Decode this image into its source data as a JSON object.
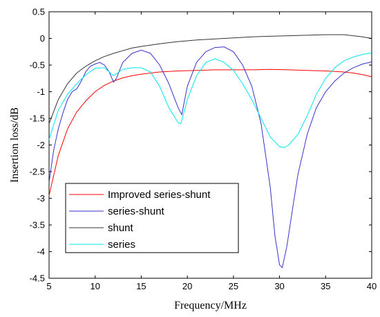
{
  "chart_data": {
    "type": "line",
    "xlabel": "Frequency/MHz",
    "ylabel": "Insertion loss/dB",
    "xlim": [
      5,
      40
    ],
    "ylim": [
      -4.5,
      0.5
    ],
    "xticks": [
      5,
      10,
      15,
      20,
      25,
      30,
      35,
      40
    ],
    "yticks": [
      0.5,
      0,
      -0.5,
      -1,
      -1.5,
      -2,
      -2.5,
      -3,
      -3.5,
      -4,
      -4.5
    ],
    "grid": false,
    "legend_position": "lower-left",
    "series": [
      {
        "name": "Improved series-shunt",
        "color": "#ff0000",
        "points": [
          [
            5,
            -2.95
          ],
          [
            6,
            -2.2
          ],
          [
            7,
            -1.7
          ],
          [
            8,
            -1.38
          ],
          [
            9,
            -1.17
          ],
          [
            10,
            -1.0
          ],
          [
            11,
            -0.88
          ],
          [
            12,
            -0.8
          ],
          [
            13,
            -0.74
          ],
          [
            14,
            -0.7
          ],
          [
            15,
            -0.67
          ],
          [
            17,
            -0.63
          ],
          [
            19,
            -0.61
          ],
          [
            21,
            -0.6
          ],
          [
            23,
            -0.59
          ],
          [
            25,
            -0.59
          ],
          [
            27,
            -0.59
          ],
          [
            29,
            -0.58
          ],
          [
            31,
            -0.59
          ],
          [
            33,
            -0.6
          ],
          [
            35,
            -0.61
          ],
          [
            37,
            -0.63
          ],
          [
            38,
            -0.65
          ],
          [
            39,
            -0.68
          ],
          [
            40,
            -0.72
          ]
        ]
      },
      {
        "name": "series-shunt",
        "color": "#3333cc",
        "points": [
          [
            5,
            -2.7
          ],
          [
            5.5,
            -2.1
          ],
          [
            6,
            -1.7
          ],
          [
            6.5,
            -1.4
          ],
          [
            7,
            -1.15
          ],
          [
            7.5,
            -1.0
          ],
          [
            8,
            -0.95
          ],
          [
            8.5,
            -0.8
          ],
          [
            9,
            -0.62
          ],
          [
            9.5,
            -0.52
          ],
          [
            10,
            -0.48
          ],
          [
            10.5,
            -0.45
          ],
          [
            11,
            -0.5
          ],
          [
            11.5,
            -0.62
          ],
          [
            12,
            -0.82
          ],
          [
            12.3,
            -0.75
          ],
          [
            13,
            -0.45
          ],
          [
            14,
            -0.28
          ],
          [
            15,
            -0.22
          ],
          [
            16,
            -0.28
          ],
          [
            17,
            -0.5
          ],
          [
            18,
            -0.85
          ],
          [
            19,
            -1.3
          ],
          [
            19.4,
            -1.43
          ],
          [
            20,
            -0.9
          ],
          [
            21,
            -0.45
          ],
          [
            22,
            -0.25
          ],
          [
            23,
            -0.17
          ],
          [
            24,
            -0.16
          ],
          [
            25,
            -0.25
          ],
          [
            26,
            -0.5
          ],
          [
            27,
            -0.9
          ],
          [
            28,
            -1.6
          ],
          [
            29,
            -2.8
          ],
          [
            29.5,
            -3.7
          ],
          [
            30,
            -4.25
          ],
          [
            30.3,
            -4.3
          ],
          [
            30.8,
            -3.9
          ],
          [
            31.5,
            -3.1
          ],
          [
            32,
            -2.55
          ],
          [
            33,
            -1.8
          ],
          [
            34,
            -1.3
          ],
          [
            35,
            -1.0
          ],
          [
            36,
            -0.8
          ],
          [
            37,
            -0.65
          ],
          [
            38,
            -0.55
          ],
          [
            39,
            -0.48
          ],
          [
            40,
            -0.44
          ]
        ]
      },
      {
        "name": "shunt",
        "color": "#333333",
        "points": [
          [
            5,
            -1.6
          ],
          [
            6,
            -1.15
          ],
          [
            7,
            -0.85
          ],
          [
            8,
            -0.65
          ],
          [
            9,
            -0.52
          ],
          [
            10,
            -0.42
          ],
          [
            11,
            -0.34
          ],
          [
            12,
            -0.28
          ],
          [
            13,
            -0.23
          ],
          [
            14,
            -0.18
          ],
          [
            15,
            -0.15
          ],
          [
            17,
            -0.1
          ],
          [
            19,
            -0.06
          ],
          [
            21,
            -0.03
          ],
          [
            23,
            -0.01
          ],
          [
            25,
            0.01
          ],
          [
            27,
            0.03
          ],
          [
            29,
            0.04
          ],
          [
            31,
            0.05
          ],
          [
            33,
            0.06
          ],
          [
            35,
            0.07
          ],
          [
            36,
            0.07
          ],
          [
            37,
            0.07
          ],
          [
            38,
            0.05
          ],
          [
            39,
            0.03
          ],
          [
            40,
            0.0
          ]
        ]
      },
      {
        "name": "series",
        "color": "#00e5ee",
        "points": [
          [
            5,
            -1.9
          ],
          [
            6,
            -1.35
          ],
          [
            7,
            -1.05
          ],
          [
            8,
            -0.85
          ],
          [
            9,
            -0.68
          ],
          [
            10,
            -0.56
          ],
          [
            11,
            -0.55
          ],
          [
            12,
            -0.7
          ],
          [
            13,
            -0.58
          ],
          [
            14,
            -0.55
          ],
          [
            15,
            -0.55
          ],
          [
            16,
            -0.63
          ],
          [
            17,
            -0.9
          ],
          [
            18,
            -1.3
          ],
          [
            19,
            -1.58
          ],
          [
            19.3,
            -1.6
          ],
          [
            20,
            -1.15
          ],
          [
            21,
            -0.7
          ],
          [
            22,
            -0.45
          ],
          [
            23,
            -0.38
          ],
          [
            24,
            -0.45
          ],
          [
            25,
            -0.6
          ],
          [
            26,
            -0.85
          ],
          [
            27,
            -1.15
          ],
          [
            28,
            -1.5
          ],
          [
            29,
            -1.85
          ],
          [
            30,
            -2.03
          ],
          [
            30.5,
            -2.05
          ],
          [
            31,
            -2.0
          ],
          [
            32,
            -1.8
          ],
          [
            33,
            -1.45
          ],
          [
            34,
            -1.05
          ],
          [
            35,
            -0.75
          ],
          [
            36,
            -0.55
          ],
          [
            37,
            -0.42
          ],
          [
            38,
            -0.35
          ],
          [
            39,
            -0.3
          ],
          [
            40,
            -0.27
          ]
        ]
      }
    ]
  }
}
